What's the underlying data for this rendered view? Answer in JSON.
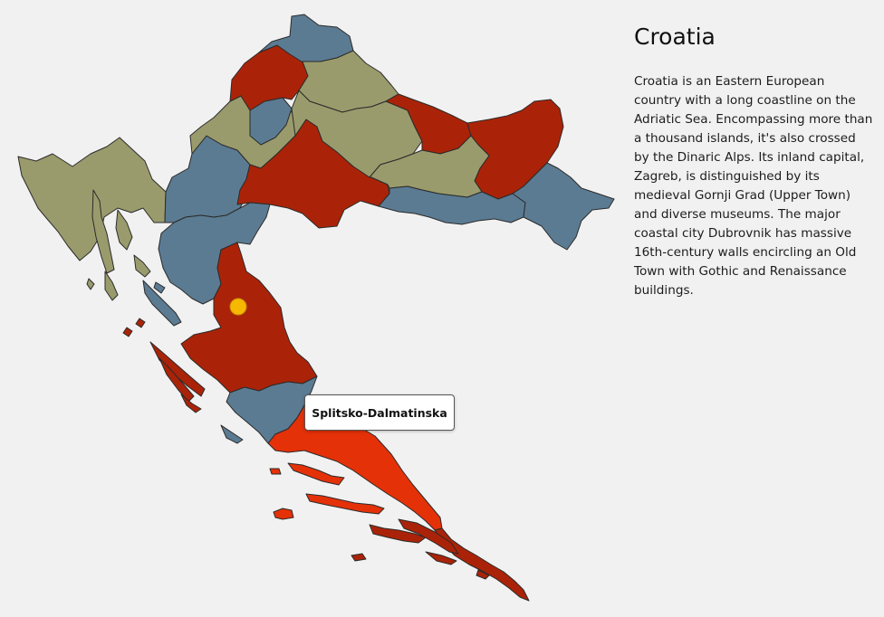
{
  "country": {
    "name": "Croatia",
    "description": "Croatia is an Eastern European country with a long coastline on the Adriatic Sea. Encompassing more than a thousand islands, it's also crossed by the Dinaric Alps. Its inland capital, Zagreb, is distinguished by its medieval Gornji Grad (Upper Town) and diverse museums. The major coastal city Dubrovnik has massive 16th-century walls encircling an Old Town with Gothic and Renaissance buildings."
  },
  "map": {
    "highlighted_region": "Splitsko-Dalmatinska",
    "colors": {
      "olive": "#9a9b6c",
      "slate": "#5b7b92",
      "red": "#aa2308",
      "highlight": "#e53108",
      "marker": "#f6b800",
      "background": "#f2f1f1"
    }
  },
  "tooltip": {
    "label": "Splitsko-Dalmatinska"
  }
}
